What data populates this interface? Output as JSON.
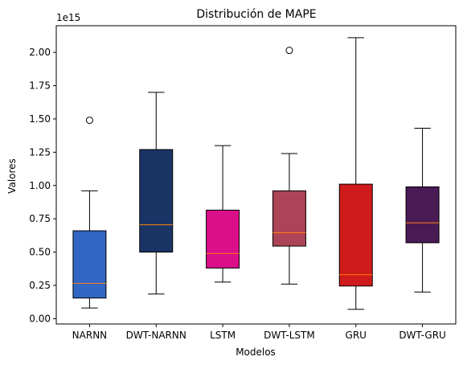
{
  "chart_data": {
    "type": "boxplot",
    "title": "Distribución de MAPE",
    "xlabel": "Modelos",
    "ylabel": "Valores",
    "y_offset_text": "1e15",
    "y_scale_factor": 1000000000000000.0,
    "ylim": [
      -0.04,
      2.2
    ],
    "yticks": [
      0.0,
      0.25,
      0.5,
      0.75,
      1.0,
      1.25,
      1.5,
      1.75,
      2.0
    ],
    "ytick_labels": [
      "0.00",
      "0.25",
      "0.50",
      "0.75",
      "1.00",
      "1.25",
      "1.50",
      "1.75",
      "2.00"
    ],
    "grid": false,
    "median_color": "#ff7f0e",
    "series": [
      {
        "name": "NARNN",
        "color": "#3266c4",
        "whisker_low": 0.08,
        "q1": 0.155,
        "median": 0.265,
        "q3": 0.66,
        "whisker_high": 0.96,
        "outliers": [
          1.49
        ]
      },
      {
        "name": "DWT-NARNN",
        "color": "#1a3466",
        "whisker_low": 0.185,
        "q1": 0.5,
        "median": 0.705,
        "q3": 1.27,
        "whisker_high": 1.7,
        "outliers": []
      },
      {
        "name": "LSTM",
        "color": "#db0f8a",
        "whisker_low": 0.275,
        "q1": 0.38,
        "median": 0.49,
        "q3": 0.815,
        "whisker_high": 1.3,
        "outliers": []
      },
      {
        "name": "DWT-LSTM",
        "color": "#ad4357",
        "whisker_low": 0.26,
        "q1": 0.545,
        "median": 0.645,
        "q3": 0.96,
        "whisker_high": 1.24,
        "outliers": [
          2.015
        ]
      },
      {
        "name": "GRU",
        "color": "#cf1b1b",
        "whisker_low": 0.07,
        "q1": 0.245,
        "median": 0.33,
        "q3": 1.01,
        "whisker_high": 2.11,
        "outliers": []
      },
      {
        "name": "DWT-GRU",
        "color": "#4a1a54",
        "whisker_low": 0.2,
        "q1": 0.57,
        "median": 0.72,
        "q3": 0.99,
        "whisker_high": 1.43,
        "outliers": []
      }
    ]
  }
}
